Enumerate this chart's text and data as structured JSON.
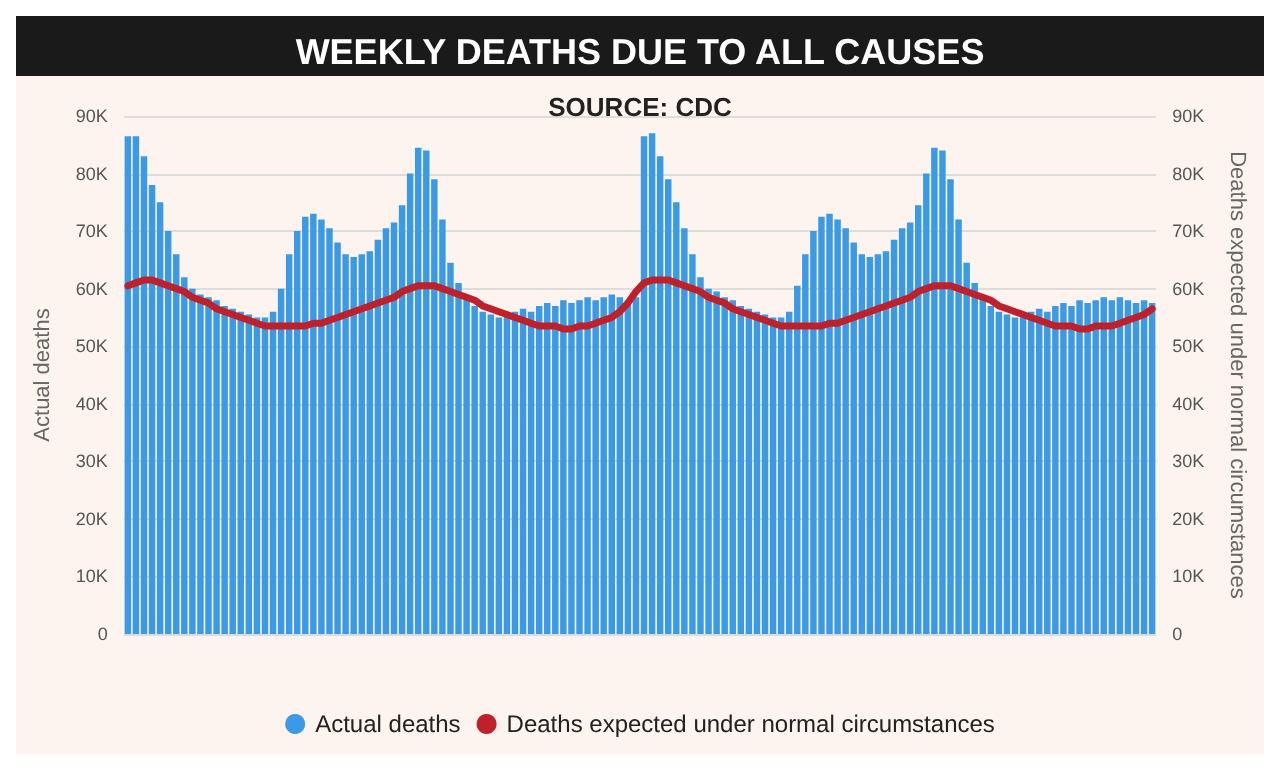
{
  "chart_data": {
    "type": "bar",
    "title": "WEEKLY DEATHS DUE TO ALL CAUSES",
    "annotations": [
      "SOURCE: CDC"
    ],
    "ylabel": "Actual deaths",
    "y2label": "Deaths expected under normal circumstances",
    "categories": [
      null,
      null,
      null,
      null,
      null,
      null,
      null,
      null,
      null,
      null,
      null,
      null,
      null,
      null,
      null,
      null,
      null,
      null,
      null,
      null,
      null,
      null,
      null,
      null,
      null,
      null,
      null,
      null,
      null,
      null,
      null,
      null,
      null,
      null,
      null,
      null,
      null,
      null,
      null,
      null,
      null,
      null,
      null,
      null,
      null,
      null,
      null,
      null,
      null,
      null,
      null,
      null,
      null,
      null,
      null,
      null,
      null,
      null,
      null,
      null,
      null,
      null,
      null,
      null,
      null,
      null,
      null,
      null,
      null,
      null,
      null,
      null,
      null,
      null,
      null,
      null,
      null,
      null,
      null,
      null,
      null,
      null,
      null,
      null,
      null,
      null,
      null,
      null,
      null,
      null,
      null,
      null,
      null,
      null,
      null,
      null,
      null,
      null,
      null,
      null,
      null,
      null,
      null,
      null,
      null,
      null,
      null,
      null,
      null,
      null,
      null,
      null,
      null,
      null,
      null,
      null,
      null,
      null,
      null,
      null,
      null,
      null,
      null,
      null,
      null,
      null,
      null,
      null
    ],
    "series": [
      {
        "name": "Actual deaths",
        "color": "#3a9ae6",
        "values": [
          86.5,
          86.5,
          83,
          78,
          75,
          70,
          66,
          62,
          60,
          59,
          58.5,
          58,
          57,
          56.5,
          56,
          55.5,
          55,
          55,
          56,
          60,
          66,
          70,
          72.5,
          73,
          72,
          70.5,
          68,
          66,
          65.5,
          66,
          66.5,
          68.5,
          70.5,
          71.5,
          74.5,
          80,
          84.5,
          84,
          79,
          72,
          64.5,
          61,
          58.5,
          57,
          56,
          55.5,
          55,
          55.5,
          56,
          56.5,
          56,
          57,
          57.5,
          57,
          58,
          57.5,
          58,
          58.5,
          58,
          58.5,
          59,
          58.5,
          58,
          58.5,
          86.5,
          87,
          83,
          79,
          75,
          70.5,
          66,
          62,
          60,
          59.5,
          58.5,
          58,
          57,
          56.5,
          56,
          55.5,
          55,
          55,
          56,
          60.5,
          66,
          70,
          72.5,
          73,
          72,
          70.5,
          68,
          66,
          65.5,
          66,
          66.5,
          68.5,
          70.5,
          71.5,
          74.5,
          80,
          84.5,
          84,
          79,
          72,
          64.5,
          61,
          58.5,
          57,
          56,
          55.5,
          55,
          55.5,
          56,
          56.5,
          56,
          57,
          57.5,
          57,
          58,
          57.5,
          58,
          58.5,
          58,
          58.5,
          58,
          57.5,
          58,
          57.5
        ]
      },
      {
        "name": "Deaths expected under normal circumstances",
        "type": "line",
        "axis": "y2",
        "color": "#c0202a",
        "values": [
          60.5,
          61,
          61.5,
          61.5,
          61,
          60.5,
          60,
          59.5,
          58.5,
          58,
          57.5,
          56.5,
          56,
          55.5,
          55,
          54.5,
          54,
          53.5,
          53.5,
          53.5,
          53.5,
          53.5,
          53.5,
          54,
          54,
          54.5,
          55,
          55.5,
          56,
          56.5,
          57,
          57.5,
          58,
          58.5,
          59.5,
          60,
          60.5,
          60.5,
          60.5,
          60,
          59.5,
          59,
          58.5,
          58,
          57,
          56.5,
          56,
          55.5,
          55,
          54.5,
          54,
          53.5,
          53.5,
          53.5,
          53,
          53,
          53.5,
          53.5,
          54,
          54.5,
          55,
          56,
          57.5,
          59.5,
          61,
          61.5,
          61.5,
          61.5,
          61,
          60.5,
          60,
          59.5,
          58.5,
          58,
          57.5,
          56.5,
          56,
          55.5,
          55,
          54.5,
          54,
          53.5,
          53.5,
          53.5,
          53.5,
          53.5,
          53.5,
          54,
          54,
          54.5,
          55,
          55.5,
          56,
          56.5,
          57,
          57.5,
          58,
          58.5,
          59.5,
          60,
          60.5,
          60.5,
          60.5,
          60,
          59.5,
          59,
          58.5,
          58,
          57,
          56.5,
          56,
          55.5,
          55,
          54.5,
          54,
          53.5,
          53.5,
          53.5,
          53,
          53,
          53.5,
          53.5,
          53.5,
          54,
          54.5,
          55,
          55.5,
          56.5
        ]
      }
    ],
    "ylim": [
      0,
      90
    ],
    "yticks": [
      {
        "value": 0,
        "label": "0"
      },
      {
        "value": 10,
        "label": "10K"
      },
      {
        "value": 20,
        "label": "20K"
      },
      {
        "value": 30,
        "label": "30K"
      },
      {
        "value": 40,
        "label": "40K"
      },
      {
        "value": 50,
        "label": "50K"
      },
      {
        "value": 60,
        "label": "60K"
      },
      {
        "value": 70,
        "label": "70K"
      },
      {
        "value": 80,
        "label": "80K"
      },
      {
        "value": 90,
        "label": "90K"
      }
    ],
    "y2lim": [
      0,
      90
    ],
    "y2ticks": [
      {
        "value": 0,
        "label": "0"
      },
      {
        "value": 10,
        "label": "10K"
      },
      {
        "value": 20,
        "label": "20K"
      },
      {
        "value": 30,
        "label": "30K"
      },
      {
        "value": 40,
        "label": "40K"
      },
      {
        "value": 50,
        "label": "50K"
      },
      {
        "value": 60,
        "label": "60K"
      },
      {
        "value": 70,
        "label": "70K"
      },
      {
        "value": 80,
        "label": "80K"
      },
      {
        "value": 90,
        "label": "90K"
      }
    ],
    "grid": "y",
    "legend": "bottom",
    "marker": "none",
    "line_style": "solid"
  }
}
